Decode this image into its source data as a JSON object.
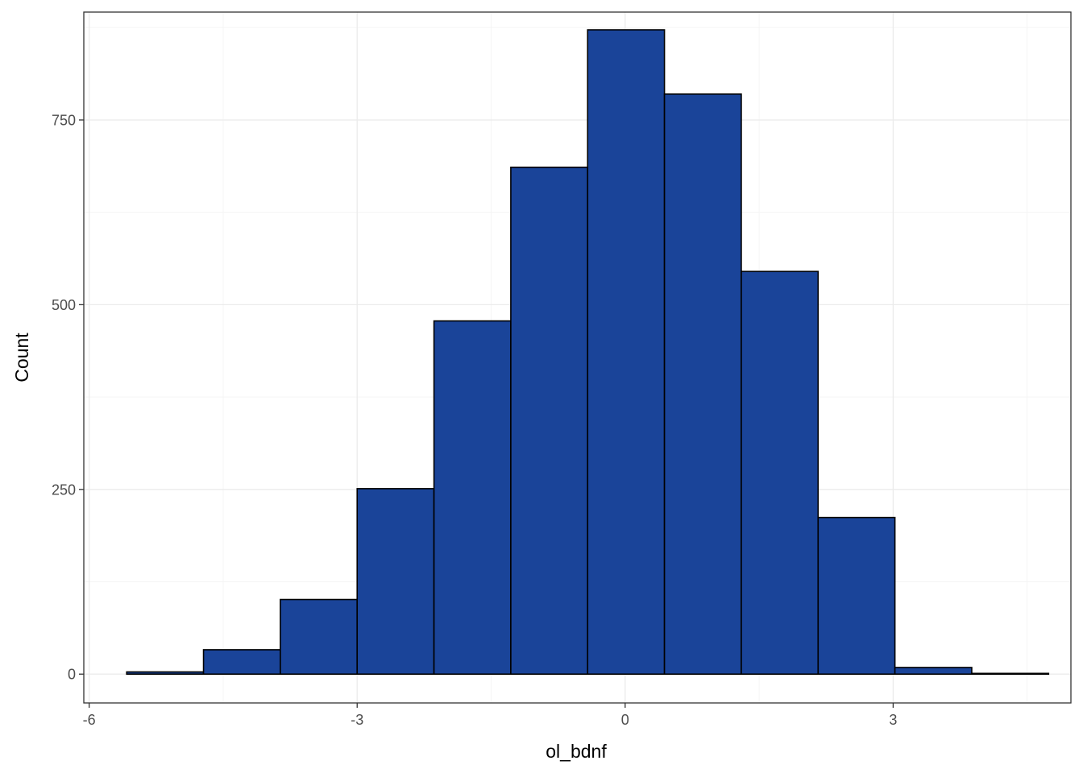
{
  "chart_data": {
    "type": "bar",
    "subtype": "histogram",
    "title": "",
    "xlabel": "ol_bdnf",
    "ylabel": "Count",
    "xlim": [
      -6.06,
      4.99
    ],
    "ylim": [
      -39,
      896
    ],
    "x_ticks": [
      {
        "value": -6,
        "label": "-6"
      },
      {
        "value": -3,
        "label": "-3"
      },
      {
        "value": 0,
        "label": "0"
      },
      {
        "value": 3,
        "label": "3"
      }
    ],
    "y_ticks": [
      {
        "value": 0,
        "label": "0"
      },
      {
        "value": 250,
        "label": "250"
      },
      {
        "value": 500,
        "label": "500"
      },
      {
        "value": 750,
        "label": "750"
      }
    ],
    "grid": true,
    "legend": "none",
    "colors": {
      "fill": "#1A4499",
      "outline": "#000000",
      "grid_major": "#EBEBEB",
      "grid_minor": "#F5F5F5",
      "panel_border": "#333333"
    },
    "bins": [
      {
        "x0": -5.58,
        "x1": -4.72,
        "count": 3
      },
      {
        "x0": -4.72,
        "x1": -3.86,
        "count": 33
      },
      {
        "x0": -3.86,
        "x1": -3.0,
        "count": 101
      },
      {
        "x0": -3.0,
        "x1": -2.14,
        "count": 251
      },
      {
        "x0": -2.14,
        "x1": -1.28,
        "count": 478
      },
      {
        "x0": -1.28,
        "x1": -0.42,
        "count": 686
      },
      {
        "x0": -0.42,
        "x1": 0.44,
        "count": 872
      },
      {
        "x0": 0.44,
        "x1": 1.3,
        "count": 785
      },
      {
        "x0": 1.3,
        "x1": 2.16,
        "count": 545
      },
      {
        "x0": 2.16,
        "x1": 3.02,
        "count": 212
      },
      {
        "x0": 3.02,
        "x1": 3.88,
        "count": 9
      },
      {
        "x0": 3.88,
        "x1": 4.74,
        "count": 1
      }
    ]
  }
}
